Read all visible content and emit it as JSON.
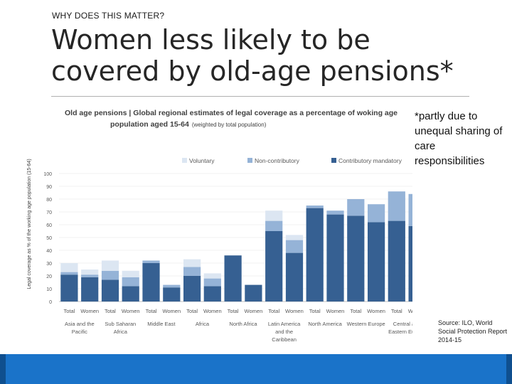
{
  "kicker": "WHY DOES THIS MATTER?",
  "title_line1": "Women less likely to be",
  "title_line2": "covered by old-age pensions*",
  "note": "*partly due to unequal sharing of care responsibilities",
  "source": "Source: ILO, World Social Protection Report 2014-15",
  "colors": {
    "voluntary": "#dce6f2",
    "non_contributory": "#95b3d7",
    "contributory_mandatory": "#366092",
    "footer": "#1a73c9"
  },
  "chart_data": {
    "type": "bar",
    "stacked": true,
    "title_line1": "Old age pensions | Global regional estimates of legal coverage as a percentage of woking age",
    "title_line2": "population aged 15-64",
    "title_suffix": "(weighted by total population)",
    "ylabel": "Legal coverage as % of the working age population (15-64)",
    "ylim": [
      0,
      100
    ],
    "yticks": [
      "100",
      "90",
      "80",
      "70",
      "60",
      "50",
      "40",
      "30",
      "20",
      "10",
      "0"
    ],
    "legend_position": "top",
    "categories": [
      "Total",
      "Women",
      "Total",
      "Women",
      "Total",
      "Women",
      "Total",
      "Women",
      "Total",
      "Women",
      "Total",
      "Women",
      "Total",
      "Women",
      "Total",
      "Women",
      "Total",
      "Women"
    ],
    "regions": [
      {
        "label": [
          "Asia and the",
          "Pacific"
        ]
      },
      {
        "label": [
          "Sub Saharan",
          "Africa"
        ]
      },
      {
        "label": [
          "Middle East",
          ""
        ]
      },
      {
        "label": [
          "Africa",
          ""
        ]
      },
      {
        "label": [
          "North Africa",
          ""
        ]
      },
      {
        "label": [
          "Latin America",
          "and the",
          "Caribbean"
        ]
      },
      {
        "label": [
          "North America",
          ""
        ]
      },
      {
        "label": [
          "Western Europe",
          ""
        ]
      },
      {
        "label": [
          "Central and",
          "Eastern Europe"
        ]
      }
    ],
    "series": [
      {
        "name": "Contributory mandatory",
        "values": [
          21,
          19,
          17,
          12,
          30,
          11,
          20,
          12,
          36,
          13,
          55,
          38,
          73,
          68,
          67,
          62,
          63,
          59
        ]
      },
      {
        "name": "Non-contributory",
        "values": [
          2,
          2,
          7,
          7,
          2,
          2,
          7,
          6,
          0,
          0,
          8,
          10,
          2,
          3,
          13,
          14,
          23,
          25
        ]
      },
      {
        "name": "Voluntary",
        "values": [
          7,
          4,
          8,
          5,
          0,
          0,
          6,
          4,
          0,
          0,
          8,
          4,
          0,
          0,
          0,
          0,
          0,
          0
        ]
      }
    ]
  }
}
